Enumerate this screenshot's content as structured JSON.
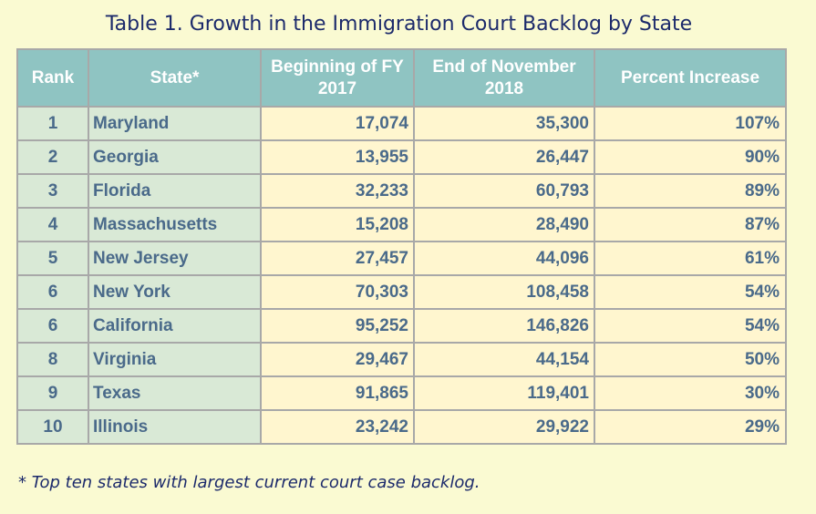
{
  "title": "Table 1. Growth in the Immigration Court Backlog by State",
  "columns": {
    "rank": "Rank",
    "state": "State*",
    "begin": "Beginning of FY 2017",
    "end": "End of November 2018",
    "pct": "Percent Increase"
  },
  "rows": [
    {
      "rank": "1",
      "state": "Maryland",
      "begin": "17,074",
      "end": "35,300",
      "pct": "107%"
    },
    {
      "rank": "2",
      "state": "Georgia",
      "begin": "13,955",
      "end": "26,447",
      "pct": "90%"
    },
    {
      "rank": "3",
      "state": "Florida",
      "begin": "32,233",
      "end": "60,793",
      "pct": "89%"
    },
    {
      "rank": "4",
      "state": "Massachusetts",
      "begin": "15,208",
      "end": "28,490",
      "pct": "87%"
    },
    {
      "rank": "5",
      "state": "New Jersey",
      "begin": "27,457",
      "end": "44,096",
      "pct": "61%"
    },
    {
      "rank": "6",
      "state": "New York",
      "begin": "70,303",
      "end": "108,458",
      "pct": "54%"
    },
    {
      "rank": "6",
      "state": "California",
      "begin": "95,252",
      "end": "146,826",
      "pct": "54%"
    },
    {
      "rank": "8",
      "state": "Virginia",
      "begin": "29,467",
      "end": "44,154",
      "pct": "50%"
    },
    {
      "rank": "9",
      "state": "Texas",
      "begin": "91,865",
      "end": "119,401",
      "pct": "30%"
    },
    {
      "rank": "10",
      "state": "Illinois",
      "begin": "23,242",
      "end": "29,922",
      "pct": "29%"
    }
  ],
  "footnote": "* Top ten states with largest current court case backlog."
}
